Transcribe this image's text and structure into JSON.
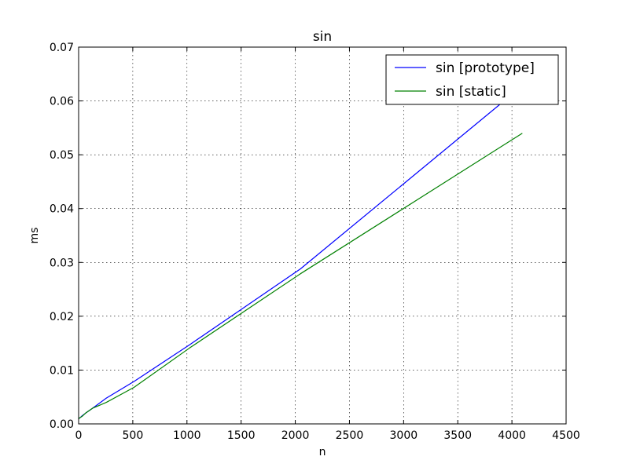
{
  "chart_data": {
    "type": "line",
    "title": "sin",
    "xlabel": "n",
    "ylabel": "ms",
    "xlim": [
      0,
      4500
    ],
    "ylim": [
      0,
      0.07
    ],
    "xticks": [
      0,
      500,
      1000,
      1500,
      2000,
      2500,
      3000,
      3500,
      4000,
      4500
    ],
    "yticks": [
      0.0,
      0.01,
      0.02,
      0.03,
      0.04,
      0.05,
      0.06,
      0.07
    ],
    "xtick_labels": [
      "0",
      "500",
      "1000",
      "1500",
      "2000",
      "2500",
      "3000",
      "3500",
      "4000",
      "4500"
    ],
    "ytick_labels": [
      "0.00",
      "0.01",
      "0.02",
      "0.03",
      "0.04",
      "0.05",
      "0.06",
      "0.07"
    ],
    "grid": true,
    "legend_position": "top-right",
    "series": [
      {
        "name": "sin [prototype]",
        "color": "#0000ff",
        "x": [
          1,
          2,
          4,
          8,
          16,
          32,
          64,
          128,
          256,
          512,
          1024,
          2048,
          4096
        ],
        "y": [
          0.001,
          0.001,
          0.001,
          0.0011,
          0.0012,
          0.0015,
          0.002,
          0.0029,
          0.0048,
          0.0079,
          0.0147,
          0.0288,
          0.0628
        ]
      },
      {
        "name": "sin [static]",
        "color": "#008000",
        "x": [
          1,
          2,
          4,
          8,
          16,
          32,
          64,
          128,
          256,
          512,
          1024,
          2048,
          4096
        ],
        "y": [
          0.001,
          0.001,
          0.001,
          0.0011,
          0.0012,
          0.0014,
          0.002,
          0.0029,
          0.004,
          0.0068,
          0.0141,
          0.0279,
          0.054
        ]
      }
    ]
  }
}
